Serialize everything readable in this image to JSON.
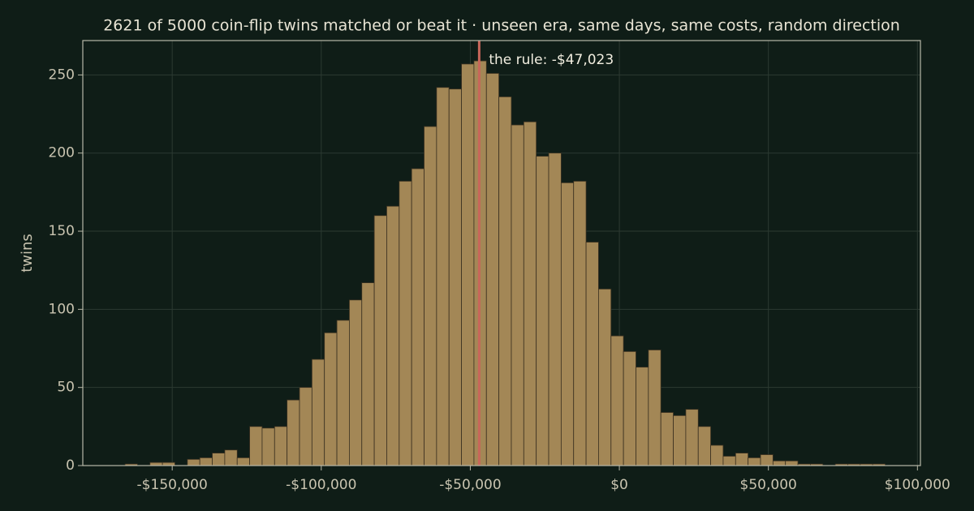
{
  "chart_data": {
    "type": "histogram",
    "title": "2621 of 5000 coin-flip twins matched or beat it  ·  unseen era, same days, same costs, random direction",
    "ylabel": "twins",
    "bins": [
      -170000,
      -165820,
      -161640,
      -157460,
      -153280,
      -149100,
      -144920,
      -140740,
      -136560,
      -132380,
      -128200,
      -124020,
      -119840,
      -115660,
      -111480,
      -107300,
      -103120,
      -98940,
      -94760,
      -90580,
      -86400,
      -82220,
      -78040,
      -73860,
      -69680,
      -65500,
      -61320,
      -57140,
      -52960,
      -48780,
      -44600,
      -40420,
      -36240,
      -32060,
      -27880,
      -23700,
      -19520,
      -15340,
      -11160,
      -6980,
      -2800,
      1380,
      5560,
      9740,
      13920,
      18100,
      22280,
      26460,
      30640,
      34820,
      39000,
      43180,
      47360,
      51540,
      55720,
      59900,
      64080,
      68260,
      72440,
      76620,
      80800,
      84980,
      89160,
      93340
    ],
    "counts": [
      0,
      1,
      0,
      2,
      2,
      0,
      4,
      5,
      8,
      10,
      5,
      25,
      24,
      25,
      42,
      50,
      68,
      85,
      93,
      106,
      117,
      160,
      166,
      182,
      190,
      217,
      242,
      241,
      257,
      259,
      251,
      236,
      218,
      220,
      198,
      200,
      181,
      182,
      143,
      113,
      83,
      73,
      63,
      74,
      34,
      32,
      36,
      25,
      13,
      6,
      8,
      5,
      7,
      3,
      3,
      1,
      1,
      0,
      1,
      1,
      1,
      1,
      0
    ],
    "color": "#a38756",
    "annotation": {
      "text": "the rule: -$47,023",
      "value": -47023,
      "color": "#c8665a"
    },
    "xlim": [
      -180000,
      101000
    ],
    "ylim": [
      0,
      272
    ],
    "xticks": [
      {
        "value": -150000,
        "label": "-$150,000"
      },
      {
        "value": -100000,
        "label": "-$100,000"
      },
      {
        "value": -50000,
        "label": "-$50,000"
      },
      {
        "value": 0,
        "label": "$0"
      },
      {
        "value": 50000,
        "label": "$50,000"
      },
      {
        "value": 100000,
        "label": "$100,000"
      }
    ],
    "yticks": [
      0,
      50,
      100,
      150,
      200,
      250
    ],
    "grid": true
  }
}
